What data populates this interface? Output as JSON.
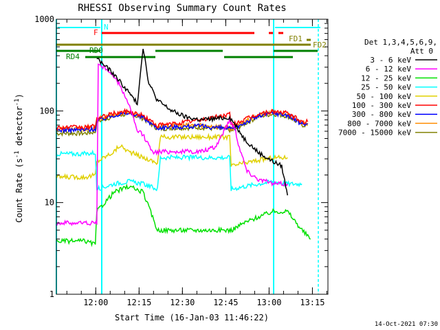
{
  "chart_data": {
    "type": "line",
    "title": "RHESSI Observing Summary Count Rates",
    "xlabel": "Start Time (16-Jan-03 11:46:22)",
    "ylabel_main": "Count Rate (s",
    "ylabel_sup1": "-1",
    "ylabel_mid": " detector",
    "ylabel_sup2": "-1",
    "ylabel_end": ")",
    "y_scale": "log",
    "ylim": [
      1,
      1000
    ],
    "y_ticks": [
      {
        "value": 1,
        "label": "1"
      },
      {
        "value": 10,
        "label": "10"
      },
      {
        "value": 100,
        "label": "100"
      },
      {
        "value": 1000,
        "label": "1000"
      }
    ],
    "x_unit": "minutes after 11:46:22",
    "xlim": [
      0,
      94
    ],
    "x_ticks": [
      {
        "value": 13.63,
        "label": "12:00"
      },
      {
        "value": 28.63,
        "label": "12:15"
      },
      {
        "value": 43.63,
        "label": "12:30"
      },
      {
        "value": 58.63,
        "label": "12:45"
      },
      {
        "value": 73.63,
        "label": "13:00"
      },
      {
        "value": 88.63,
        "label": "13:15"
      }
    ],
    "legend": {
      "placement": "right",
      "header1": "Det 1,3,4,5,6,9,",
      "header2": "Att 0",
      "entries": [
        {
          "label": "3 - 6 keV",
          "color": "#000000"
        },
        {
          "label": "6 - 12 keV",
          "color": "#ff00ff"
        },
        {
          "label": "12 - 25 keV",
          "color": "#00e000"
        },
        {
          "label": "25 - 50 keV",
          "color": "#00ffff"
        },
        {
          "label": "50 - 100 keV",
          "color": "#e0d000"
        },
        {
          "label": "100 - 300 keV",
          "color": "#ff0000"
        },
        {
          "label": "300 - 800 keV",
          "color": "#0000ff"
        },
        {
          "label": "800 - 7000 keV",
          "color": "#ff8c00"
        },
        {
          "label": "7000 - 15000 keV",
          "color": "#808000"
        }
      ]
    },
    "series": [
      {
        "name": "7000 - 15000 keV",
        "color": "#808000",
        "x": [
          0,
          10,
          13.5,
          14,
          20,
          25,
          30,
          35,
          36,
          40,
          50,
          60,
          60.5,
          65,
          70,
          75,
          80,
          85,
          87
        ],
        "y": [
          57,
          57,
          59,
          76,
          88,
          93,
          83,
          64,
          64,
          65,
          66,
          62,
          60,
          72,
          87,
          93,
          88,
          70,
          70
        ]
      },
      {
        "name": "800 - 7000 keV",
        "color": "#ff8c00",
        "x": [
          0,
          10,
          13.5,
          14,
          20,
          25,
          30,
          35,
          36,
          40,
          50,
          60,
          60.5,
          65,
          70,
          75,
          80,
          85,
          87
        ],
        "y": [
          64,
          64,
          66,
          80,
          92,
          97,
          87,
          67,
          68,
          69,
          70,
          66,
          64,
          76,
          90,
          97,
          92,
          74,
          74
        ]
      },
      {
        "name": "300 - 800 keV",
        "color": "#0000ff",
        "x": [
          0,
          10,
          13.5,
          14,
          20,
          25,
          30,
          35,
          36,
          40,
          50,
          60,
          60.5,
          65,
          70,
          75,
          80,
          85,
          87
        ],
        "y": [
          62,
          62,
          64,
          78,
          90,
          95,
          85,
          65,
          66,
          67,
          68,
          64,
          62,
          74,
          88,
          95,
          90,
          72,
          72
        ]
      },
      {
        "name": "100 - 300 keV",
        "color": "#ff0000",
        "x": [
          0,
          10,
          13.5,
          14,
          20,
          25,
          30,
          35,
          36,
          40,
          50,
          60,
          60.5,
          65,
          70,
          75,
          80,
          85,
          87
        ],
        "y": [
          66,
          66,
          68,
          82,
          94,
          99,
          89,
          69,
          70,
          72,
          80,
          92,
          70,
          80,
          92,
          99,
          94,
          76,
          76
        ]
      },
      {
        "name": "50 - 100 keV",
        "color": "#e0d000",
        "x": [
          0,
          10,
          13.5,
          14,
          20,
          22,
          25,
          30,
          35,
          36,
          40,
          50,
          60,
          60.5,
          65,
          70,
          75,
          80
        ],
        "y": [
          19,
          19,
          20,
          28,
          36,
          42,
          36,
          31,
          27,
          52,
          52,
          52,
          52,
          25,
          27,
          29,
          31,
          31
        ]
      },
      {
        "name": "25 - 50 keV",
        "color": "#00ffff",
        "x": [
          0,
          10,
          13.5,
          14,
          20,
          25,
          30,
          35,
          36,
          40,
          50,
          60,
          60.5,
          65,
          70,
          75,
          80,
          85
        ],
        "y": [
          34,
          34,
          35,
          14,
          16,
          17,
          16,
          14,
          31,
          31,
          31,
          31,
          14,
          15,
          16,
          17,
          16,
          16
        ]
      },
      {
        "name": "12 - 25 keV",
        "color": "#00e000",
        "x": [
          0,
          10,
          13.5,
          14,
          20,
          25,
          30,
          35,
          36,
          40,
          50,
          60,
          60.5,
          65,
          70,
          75,
          80,
          85,
          88
        ],
        "y": [
          3.8,
          3.8,
          3.5,
          8,
          13,
          15,
          13,
          5,
          5,
          5,
          5,
          5,
          5,
          6,
          7,
          8,
          8,
          5,
          4
        ]
      },
      {
        "name": "6 - 12 keV",
        "color": "#ff00ff",
        "x": [
          0,
          14,
          14.5,
          18,
          22,
          25,
          28,
          30,
          32,
          34,
          36,
          40,
          50,
          55,
          60,
          62,
          63,
          66,
          70,
          75,
          80
        ],
        "y": [
          6,
          6,
          320,
          280,
          190,
          120,
          60,
          55,
          42,
          35,
          36,
          36,
          36,
          40,
          80,
          62,
          44,
          22,
          18,
          16,
          16
        ]
      },
      {
        "name": "3 - 6 keV",
        "color": "#000000",
        "x": [
          14,
          15,
          20,
          25,
          28,
          30,
          32,
          35,
          40,
          45,
          50,
          55,
          60,
          62,
          65,
          70,
          75,
          78,
          80
        ],
        "y": [
          380,
          350,
          250,
          160,
          120,
          500,
          200,
          130,
          100,
          85,
          80,
          82,
          85,
          70,
          50,
          35,
          28,
          25,
          12
        ]
      }
    ],
    "bars": [
      {
        "label": "N",
        "color": "#00ffff"
      },
      {
        "label": "F",
        "color": "#ff0000"
      },
      {
        "label": "FD1",
        "color": "#808000"
      },
      {
        "label": "FD2",
        "color": "#808000"
      },
      {
        "label": "RD0",
        "color": "#008000"
      },
      {
        "label": "RD4",
        "color": "#008000"
      }
    ],
    "timestamp": "14-Oct-2021 07:30"
  }
}
